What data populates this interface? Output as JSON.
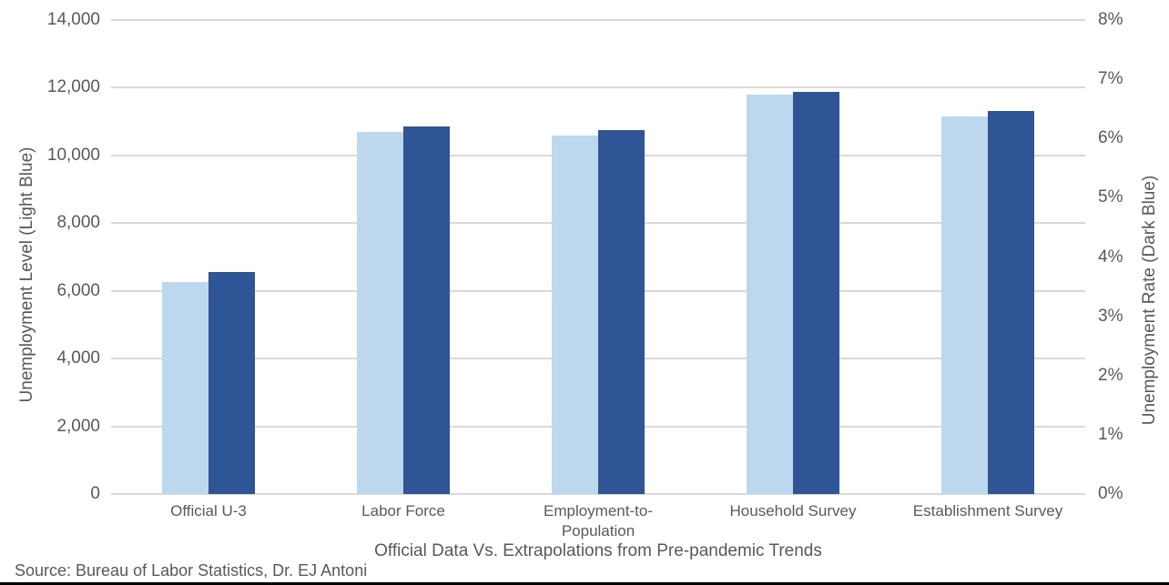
{
  "chart_data": {
    "type": "bar",
    "xlabel": "Official Data Vs. Extrapolations from Pre-pandemic Trends",
    "ylabel_left": "Unemployment Level (Light Blue)",
    "ylabel_right": "Unemployment Rate (Dark Blue)",
    "source": "Source: Bureau of Labor Statistics, Dr. EJ Antoni",
    "categories": [
      "Official U-3",
      "Labor Force",
      "Employment-to-Population",
      "Household Survey",
      "Establishment Survey"
    ],
    "series": [
      {
        "name": "Unemployment Level",
        "axis": "left",
        "color": "#BDD7EE",
        "values": [
          6260,
          10690,
          10590,
          11790,
          11150
        ]
      },
      {
        "name": "Unemployment Rate",
        "axis": "right",
        "color": "#2F5596",
        "values": [
          3.75,
          6.2,
          6.14,
          6.79,
          6.47
        ]
      }
    ],
    "left_axis": {
      "min": 0,
      "max": 14000,
      "ticks": [
        "14,000",
        "12,000",
        "10,000",
        "8,000",
        "6,000",
        "4,000",
        "2,000",
        "0"
      ]
    },
    "right_axis": {
      "min": 0,
      "max": 8,
      "ticks": [
        "8%",
        "7%",
        "6%",
        "5%",
        "4%",
        "3%",
        "2%",
        "1%",
        "0%"
      ]
    },
    "grid": true,
    "legend": "none",
    "colors": {
      "light_blue": "#BDD7EE",
      "dark_blue": "#2F5596",
      "gridline": "#D9D9D9",
      "text": "#595959",
      "background": "#FFFFFF",
      "border_bottom": "#000000"
    }
  }
}
